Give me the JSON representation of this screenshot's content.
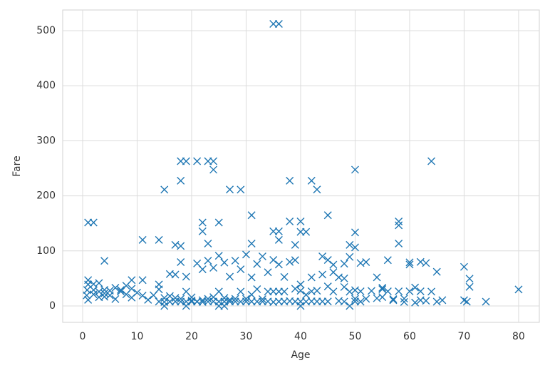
{
  "chart_data": {
    "type": "scatter",
    "x_label": "Age",
    "y_label": "Fare",
    "color": "#1f77b4",
    "marker": "x",
    "grid": true,
    "xlim": [
      -3.66,
      83.8
    ],
    "ylim": [
      -29.8,
      537.6
    ],
    "xticks": [
      0,
      10,
      20,
      30,
      40,
      50,
      60,
      70,
      80
    ],
    "yticks": [
      0,
      100,
      200,
      300,
      400,
      500
    ],
    "x": [
      35,
      36,
      18,
      19,
      21,
      23,
      24,
      24,
      64,
      50,
      18,
      38,
      42,
      43,
      15,
      27,
      29,
      1,
      2,
      25,
      22,
      58,
      58,
      40,
      38,
      45,
      31,
      22,
      35,
      36,
      41,
      40,
      50,
      36,
      11,
      14,
      58,
      17,
      18,
      23,
      31,
      39,
      49,
      50,
      0.83,
      0.75,
      1,
      1,
      1,
      2,
      2,
      2,
      3,
      3,
      3,
      4,
      4,
      4,
      4,
      5,
      5,
      6,
      6,
      7,
      7,
      8,
      8,
      9,
      9,
      9,
      10,
      11,
      11,
      12,
      13,
      14,
      14,
      14,
      15,
      15,
      16,
      16,
      16,
      17,
      17,
      17,
      18,
      18,
      18,
      19,
      19,
      19,
      20,
      20,
      20,
      21,
      21,
      21,
      22,
      22,
      22,
      23,
      23,
      23,
      24,
      24,
      24,
      25,
      25,
      25,
      26,
      26,
      26,
      27,
      27,
      27,
      28,
      28,
      28,
      29,
      29,
      29,
      30,
      30,
      30,
      31,
      31,
      31,
      32,
      32,
      32,
      33,
      33,
      33,
      34,
      34,
      34,
      35,
      35,
      35,
      36,
      36,
      36,
      37,
      37,
      37,
      38,
      38,
      39,
      39,
      39,
      40,
      40,
      40,
      41,
      41,
      42,
      42,
      43,
      43,
      44,
      44,
      45,
      45,
      45,
      46,
      46,
      47,
      47,
      48,
      48,
      48,
      49,
      49,
      49,
      50,
      50,
      50,
      51,
      51,
      51,
      52,
      52,
      53,
      54,
      54,
      55,
      55,
      56,
      56,
      57,
      58,
      59,
      59,
      60,
      61,
      61,
      62,
      62,
      63,
      64,
      65,
      66,
      70,
      70.5,
      71,
      71,
      74,
      80,
      70,
      65,
      60,
      60,
      62,
      63,
      57,
      55,
      48,
      46,
      44,
      42,
      26,
      19,
      15,
      40,
      25
    ],
    "y": [
      512.3,
      512.3,
      263,
      263,
      263,
      263,
      263,
      247.5,
      263,
      247.5,
      227.5,
      227.5,
      227.5,
      211.5,
      211.3,
      211.5,
      211.3,
      151.5,
      151.5,
      151.6,
      151.6,
      153.5,
      146.5,
      153.5,
      153.5,
      164.9,
      164.9,
      135.6,
      135.6,
      135.6,
      134.5,
      134.5,
      133.6,
      120,
      120,
      120,
      113.3,
      110.9,
      108.9,
      113.3,
      113.3,
      110.9,
      110.9,
      106.4,
      29,
      19.3,
      11.1,
      39,
      46.9,
      21,
      29,
      39.7,
      15.9,
      26,
      41.6,
      16.7,
      23,
      29.1,
      81.9,
      27.8,
      19.3,
      33,
      12.5,
      29.1,
      26.25,
      36.75,
      21.1,
      31.4,
      15.2,
      46.9,
      24.2,
      18.8,
      46.9,
      11.2,
      19.5,
      7.9,
      30.1,
      39,
      7.2,
      14.5,
      7.75,
      18,
      57.9,
      7.9,
      57,
      14.5,
      7.75,
      13,
      79.6,
      7.9,
      26,
      53.1,
      7.9,
      9.8,
      15.7,
      7.8,
      8.05,
      77.3,
      7.25,
      10.5,
      66.6,
      7.85,
      13,
      82.3,
      8.05,
      16.1,
      69.3,
      7.9,
      26,
      91.1,
      7.8,
      14.5,
      78.85,
      7.9,
      11.1,
      53.1,
      7.9,
      13,
      82.2,
      7.75,
      26,
      66.6,
      8.05,
      13,
      93.5,
      7.9,
      20.5,
      52,
      7.9,
      30.5,
      76.3,
      7.9,
      12.3,
      90,
      8.05,
      26,
      61.2,
      7.05,
      26.3,
      83.5,
      7.9,
      26,
      75.25,
      7.9,
      26,
      52.55,
      8.7,
      80,
      7.9,
      31.3,
      83.2,
      7.9,
      27.7,
      39,
      7.85,
      20.2,
      8.4,
      52,
      8.05,
      27.7,
      8.05,
      90,
      8.05,
      35.5,
      83.5,
      26,
      61.2,
      9,
      52,
      7.85,
      34.4,
      76.7,
      0,
      25.9,
      89.1,
      8.05,
      13,
      28.7,
      7.75,
      26.55,
      77.96,
      13,
      79.65,
      27.4,
      14,
      51.9,
      16,
      30.5,
      26.55,
      83.2,
      12.35,
      26.55,
      7.25,
      13.5,
      26.55,
      6.2,
      33.5,
      10.5,
      80,
      77.96,
      26,
      7.75,
      10.5,
      10.5,
      7.75,
      34.65,
      49.5,
      7.78,
      30,
      71,
      61.98,
      79.2,
      75.25,
      26.5,
      9.6,
      10.5,
      33,
      50,
      75,
      57,
      26.5,
      0,
      0,
      0,
      0,
      0
    ]
  }
}
